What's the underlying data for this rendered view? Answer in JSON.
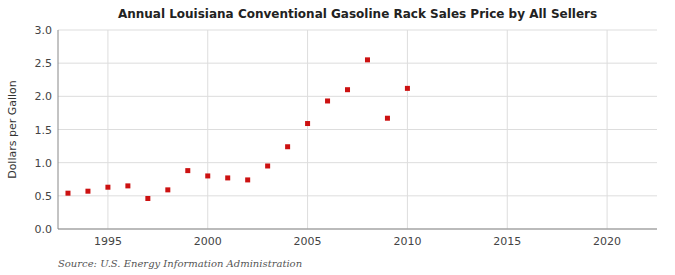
{
  "chart_data": {
    "type": "scatter",
    "title": "Annual Louisiana Conventional Gasoline Rack Sales Price by All Sellers",
    "ylabel": "Dollars per Gallon",
    "source": "Source: U.S. Energy Information Administration",
    "color": "#cc1111",
    "marker": "square",
    "grid": true,
    "xlim": [
      1992.5,
      2022.5
    ],
    "ylim": [
      0.0,
      3.0
    ],
    "xticks": [
      1995,
      2000,
      2005,
      2010,
      2015,
      2020
    ],
    "yticks": [
      {
        "value": 0.0,
        "label": "0.0"
      },
      0.5,
      {
        "value": 1.0,
        "label": "1.0"
      },
      1.5,
      {
        "value": 2.0,
        "label": "2.0"
      },
      2.5,
      {
        "value": 3.0,
        "label": "3.0"
      }
    ],
    "x": [
      1993,
      1994,
      1995,
      1996,
      1997,
      1998,
      1999,
      2000,
      2001,
      2002,
      2003,
      2004,
      2005,
      2006,
      2007,
      2008,
      2009,
      2010
    ],
    "values": [
      0.54,
      0.57,
      0.63,
      0.65,
      0.46,
      0.59,
      0.88,
      0.8,
      0.77,
      0.74,
      0.95,
      1.24,
      1.59,
      1.93,
      2.1,
      2.55,
      1.67,
      2.12
    ]
  }
}
